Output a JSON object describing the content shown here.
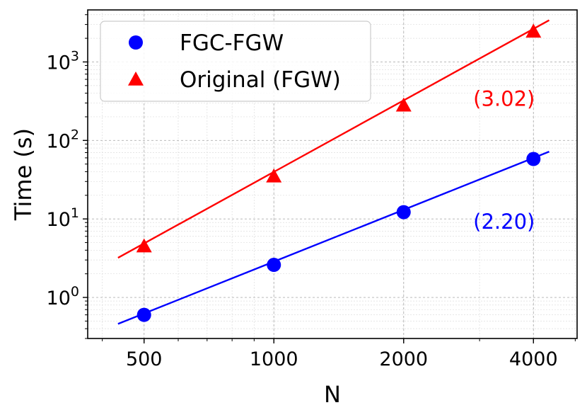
{
  "chart_data": {
    "type": "line",
    "xscale": "log",
    "yscale": "log",
    "xlabel": "N",
    "ylabel": "Time (s)",
    "x_ticks": [
      500,
      1000,
      2000,
      4000
    ],
    "x_tick_labels": [
      "500",
      "1000",
      "2000",
      "4000"
    ],
    "y_ticks": [
      1,
      10,
      100,
      1000
    ],
    "y_tick_labels": [
      {
        "base": "10",
        "exp": "0"
      },
      {
        "base": "10",
        "exp": "1"
      },
      {
        "base": "10",
        "exp": "2"
      },
      {
        "base": "10",
        "exp": "3"
      }
    ],
    "xlim": [
      370,
      5050
    ],
    "ylim": [
      0.3,
      4600
    ],
    "grid": true,
    "legend_position": "top-left",
    "series": [
      {
        "name": "FGC-FGW",
        "color": "#0000ff",
        "marker": "circle",
        "x": [
          500,
          1000,
          2000,
          4000
        ],
        "y": [
          0.6,
          2.6,
          12.2,
          58.0
        ],
        "fit": {
          "x": [
            435,
            4350
          ],
          "y": [
            0.46,
            72.0
          ]
        },
        "annotation": "(2.20)",
        "annotation_at": [
          2900,
          9.2
        ]
      },
      {
        "name": "Original (FGW)",
        "color": "#ff0000",
        "marker": "triangle",
        "x": [
          500,
          1000,
          2000,
          4000
        ],
        "y": [
          4.5,
          35.0,
          280.0,
          2450.0
        ],
        "fit": {
          "x": [
            435,
            4350
          ],
          "y": [
            3.2,
            3400.0
          ]
        },
        "annotation": "(3.02)",
        "annotation_at": [
          2900,
          340
        ]
      }
    ]
  }
}
